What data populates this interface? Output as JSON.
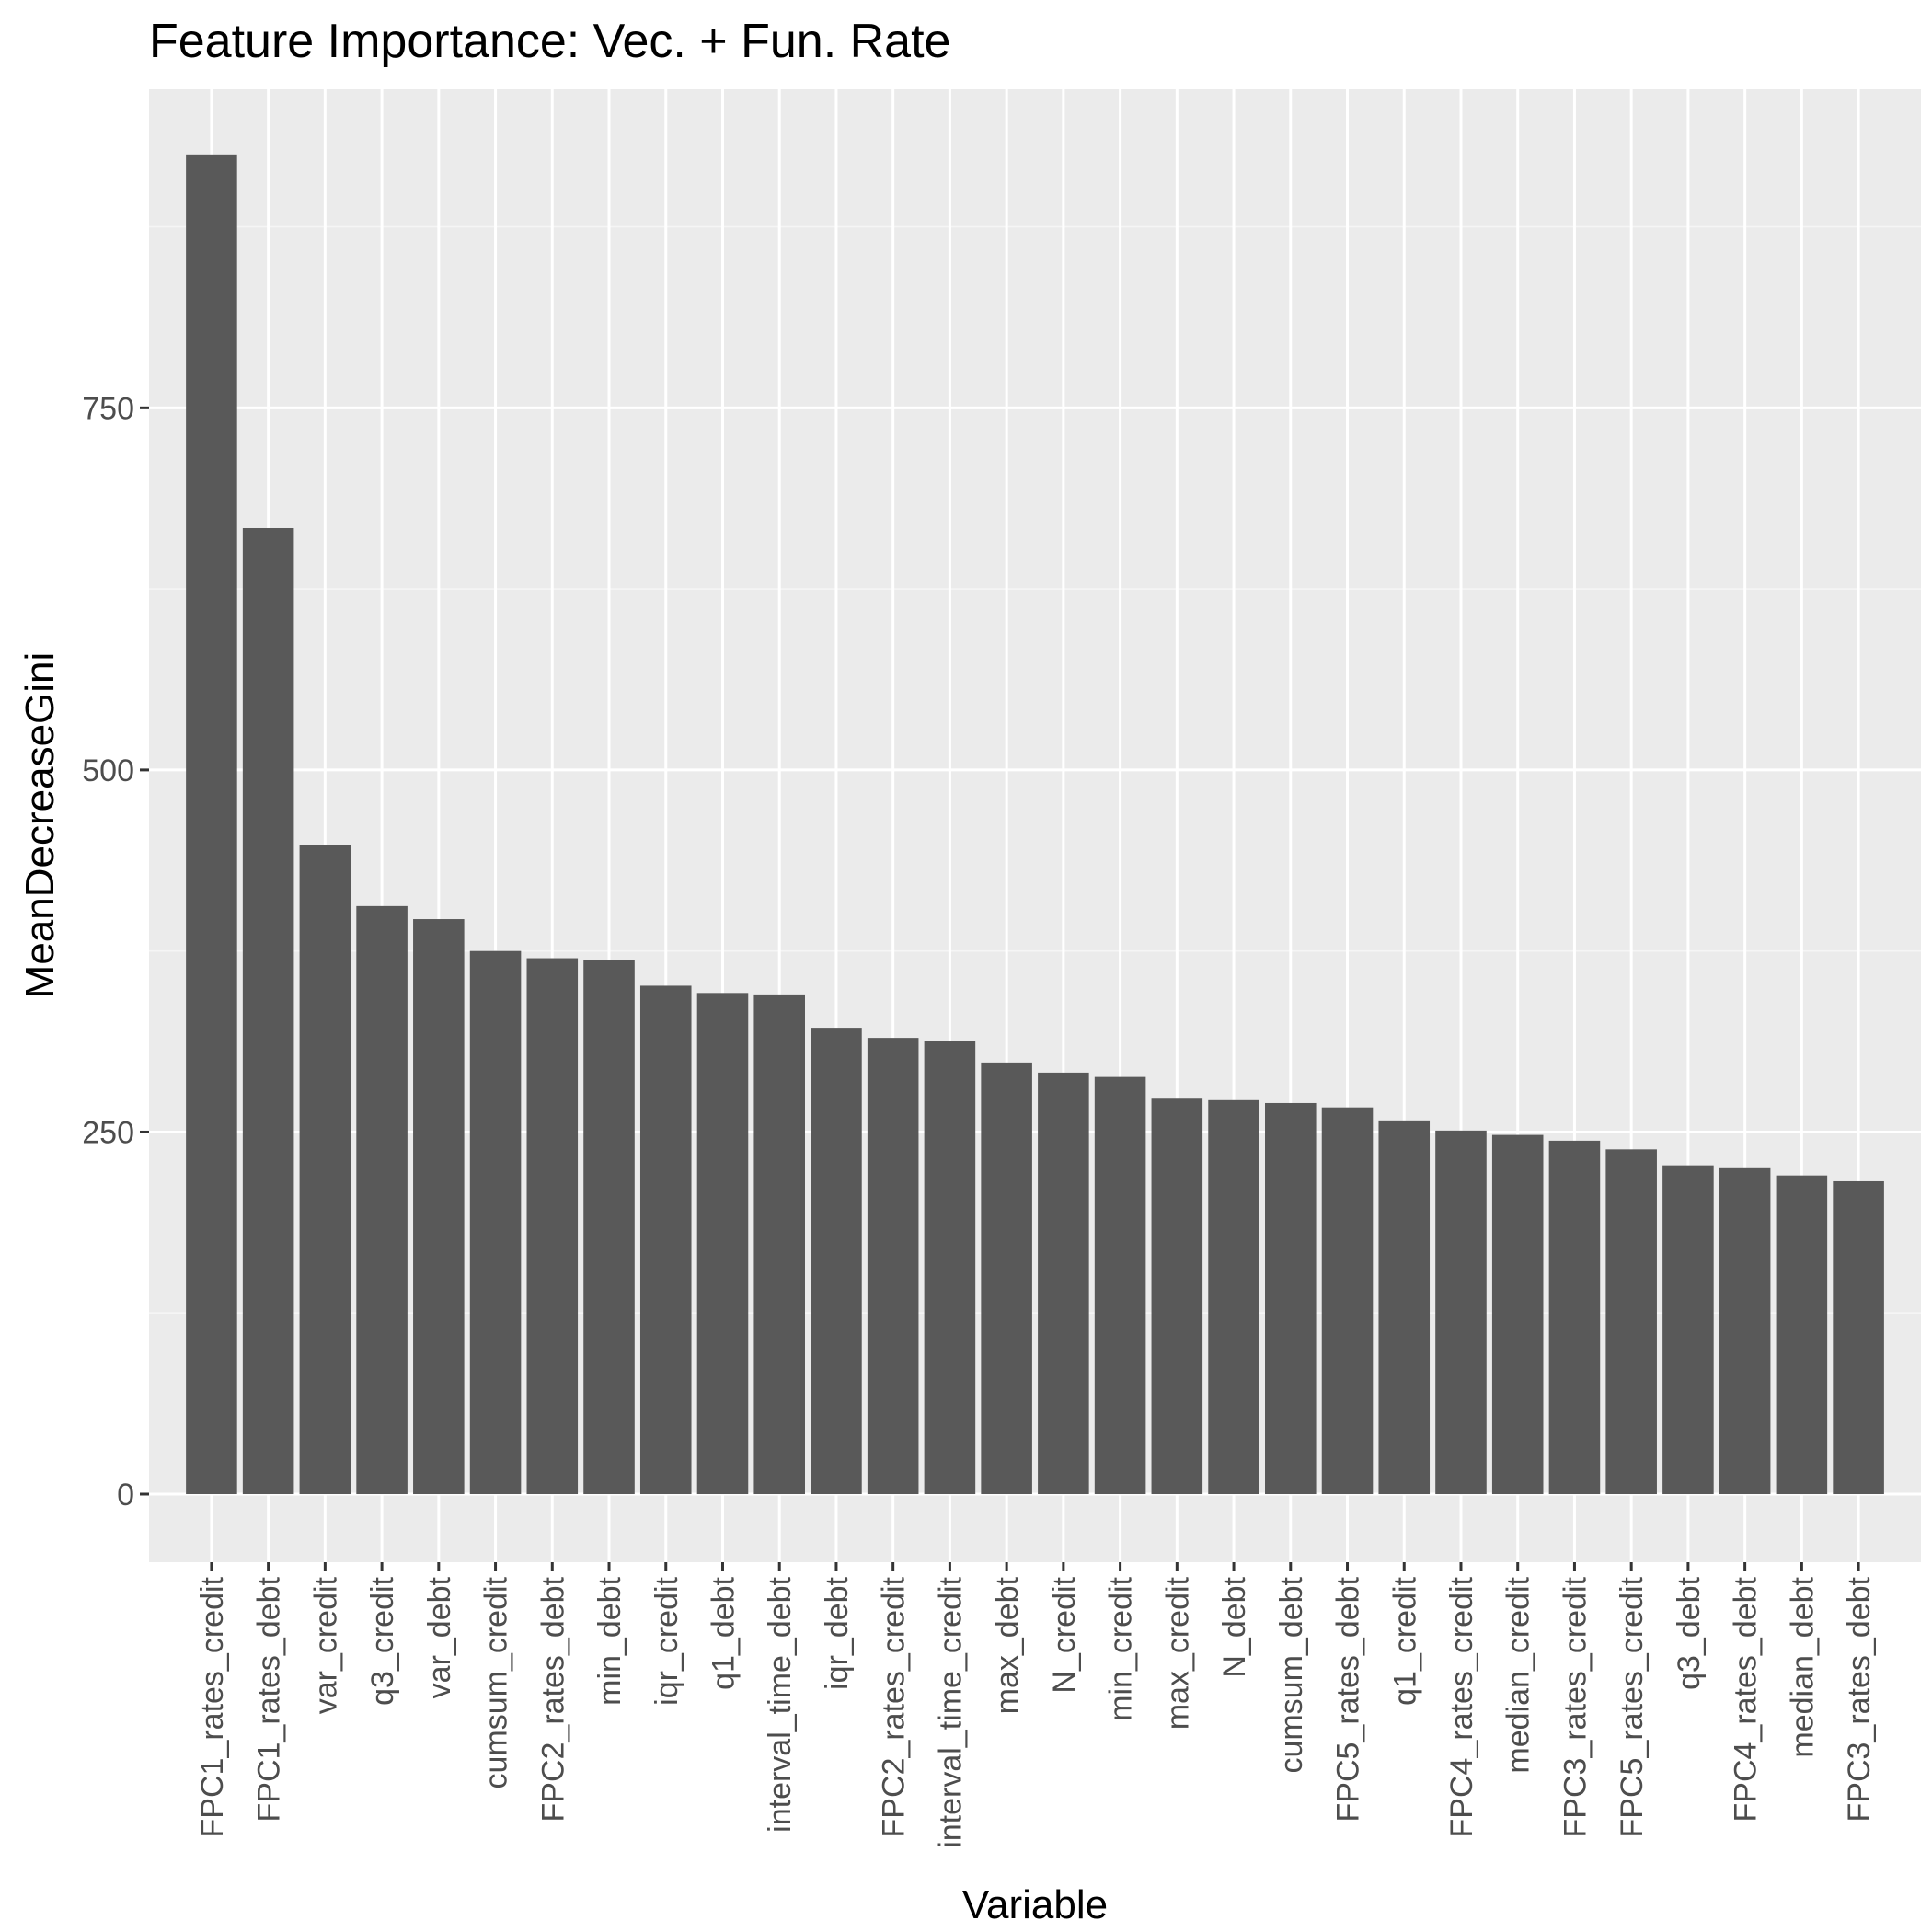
{
  "chart_data": {
    "type": "bar",
    "title": "Feature Importance: Vec. + Fun. Rate",
    "xlabel": "Variable",
    "ylabel": "MeanDecreaseGini",
    "ylim": [
      -47,
      970
    ],
    "yticks": [
      0,
      250,
      500,
      750
    ],
    "ytick_labels": [
      "0",
      "250",
      "500",
      "750"
    ],
    "grid": true,
    "categories": [
      "FPC1_rates_credit",
      "FPC1_rates_debt",
      "var_credit",
      "q3_credit",
      "var_debt",
      "cumsum_credit",
      "FPC2_rates_debt",
      "min_debt",
      "iqr_credit",
      "q1_debt",
      "interval_time_debt",
      "iqr_debt",
      "FPC2_rates_credit",
      "interval_time_credit",
      "max_debt",
      "N_credit",
      "min_credit",
      "max_credit",
      "N_debt",
      "cumsum_debt",
      "FPC5_rates_debt",
      "q1_credit",
      "FPC4_rates_credit",
      "median_credit",
      "FPC3_rates_credit",
      "FPC5_rates_credit",
      "q3_debt",
      "FPC4_rates_debt",
      "median_debt",
      "FPC3_rates_debt"
    ],
    "values": [
      925,
      667,
      448,
      406,
      397,
      375,
      370,
      369,
      351,
      346,
      345,
      322,
      315,
      313,
      298,
      291,
      288,
      273,
      272,
      270,
      267,
      258,
      251,
      248,
      244,
      238,
      227,
      225,
      220,
      216
    ],
    "colors": {
      "panel": "#EBEBEB",
      "grid_major": "#FFFFFF",
      "grid_minor": "#F5F5F5",
      "bar": "#595959",
      "tick": "#333333"
    }
  }
}
